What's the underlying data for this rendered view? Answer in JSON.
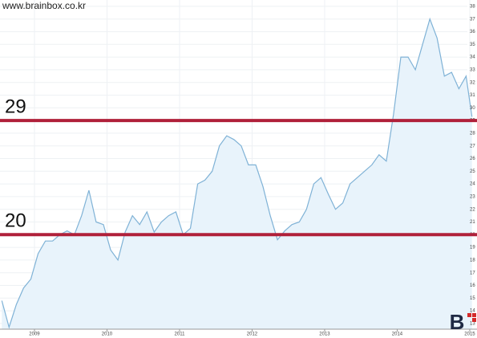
{
  "watermark": "www.brainbox.co.kr",
  "logo": "B",
  "chart_data": {
    "type": "area",
    "x": [
      2008.55,
      2008.65,
      2008.75,
      2008.85,
      2008.95,
      2009.05,
      2009.15,
      2009.25,
      2009.35,
      2009.45,
      2009.55,
      2009.65,
      2009.75,
      2009.85,
      2009.95,
      2010.05,
      2010.15,
      2010.25,
      2010.35,
      2010.45,
      2010.55,
      2010.65,
      2010.75,
      2010.85,
      2010.95,
      2011.05,
      2011.15,
      2011.25,
      2011.35,
      2011.45,
      2011.55,
      2011.65,
      2011.75,
      2011.85,
      2011.95,
      2012.05,
      2012.15,
      2012.25,
      2012.35,
      2012.45,
      2012.55,
      2012.65,
      2012.75,
      2012.85,
      2012.95,
      2013.05,
      2013.15,
      2013.25,
      2013.35,
      2013.45,
      2013.55,
      2013.65,
      2013.75,
      2013.85,
      2013.95,
      2014.05,
      2014.15,
      2014.25,
      2014.35,
      2014.45,
      2014.55,
      2014.65,
      2014.75,
      2014.85,
      2014.95,
      2015.03
    ],
    "values": [
      14.8,
      12.7,
      14.5,
      15.8,
      16.5,
      18.5,
      19.5,
      19.5,
      20,
      20.3,
      20,
      21.5,
      23.5,
      21,
      20.8,
      18.8,
      18,
      20.2,
      21.5,
      20.8,
      21.8,
      20.2,
      21,
      21.5,
      21.8,
      20,
      20.5,
      24,
      24.3,
      25,
      27,
      27.8,
      27.5,
      27,
      25.5,
      25.5,
      23.8,
      21.5,
      19.6,
      20.3,
      20.8,
      21,
      22,
      24,
      24.5,
      23.2,
      22,
      22.5,
      24,
      24.5,
      25,
      25.5,
      26.3,
      25.8,
      29.5,
      34,
      34,
      33,
      35,
      37,
      35.5,
      32.5,
      32.8,
      31.5,
      32.5,
      29.3
    ],
    "color": "#7fb2d6",
    "fill": "#e8f3fb",
    "xlim": [
      2008.525,
      2015.1
    ],
    "xticks": [
      2009,
      2010,
      2011,
      2012,
      2013,
      2014,
      2015
    ],
    "ylim": [
      12.55,
      38.5
    ],
    "yticks": [
      13,
      14,
      15,
      16,
      17,
      18,
      19,
      20,
      21,
      22,
      23,
      24,
      25,
      26,
      27,
      28,
      29,
      30,
      31,
      32,
      33,
      34,
      35,
      36,
      37,
      38
    ],
    "grid": true,
    "hlines": [
      29,
      20
    ],
    "hline_color": "#b0203a"
  }
}
